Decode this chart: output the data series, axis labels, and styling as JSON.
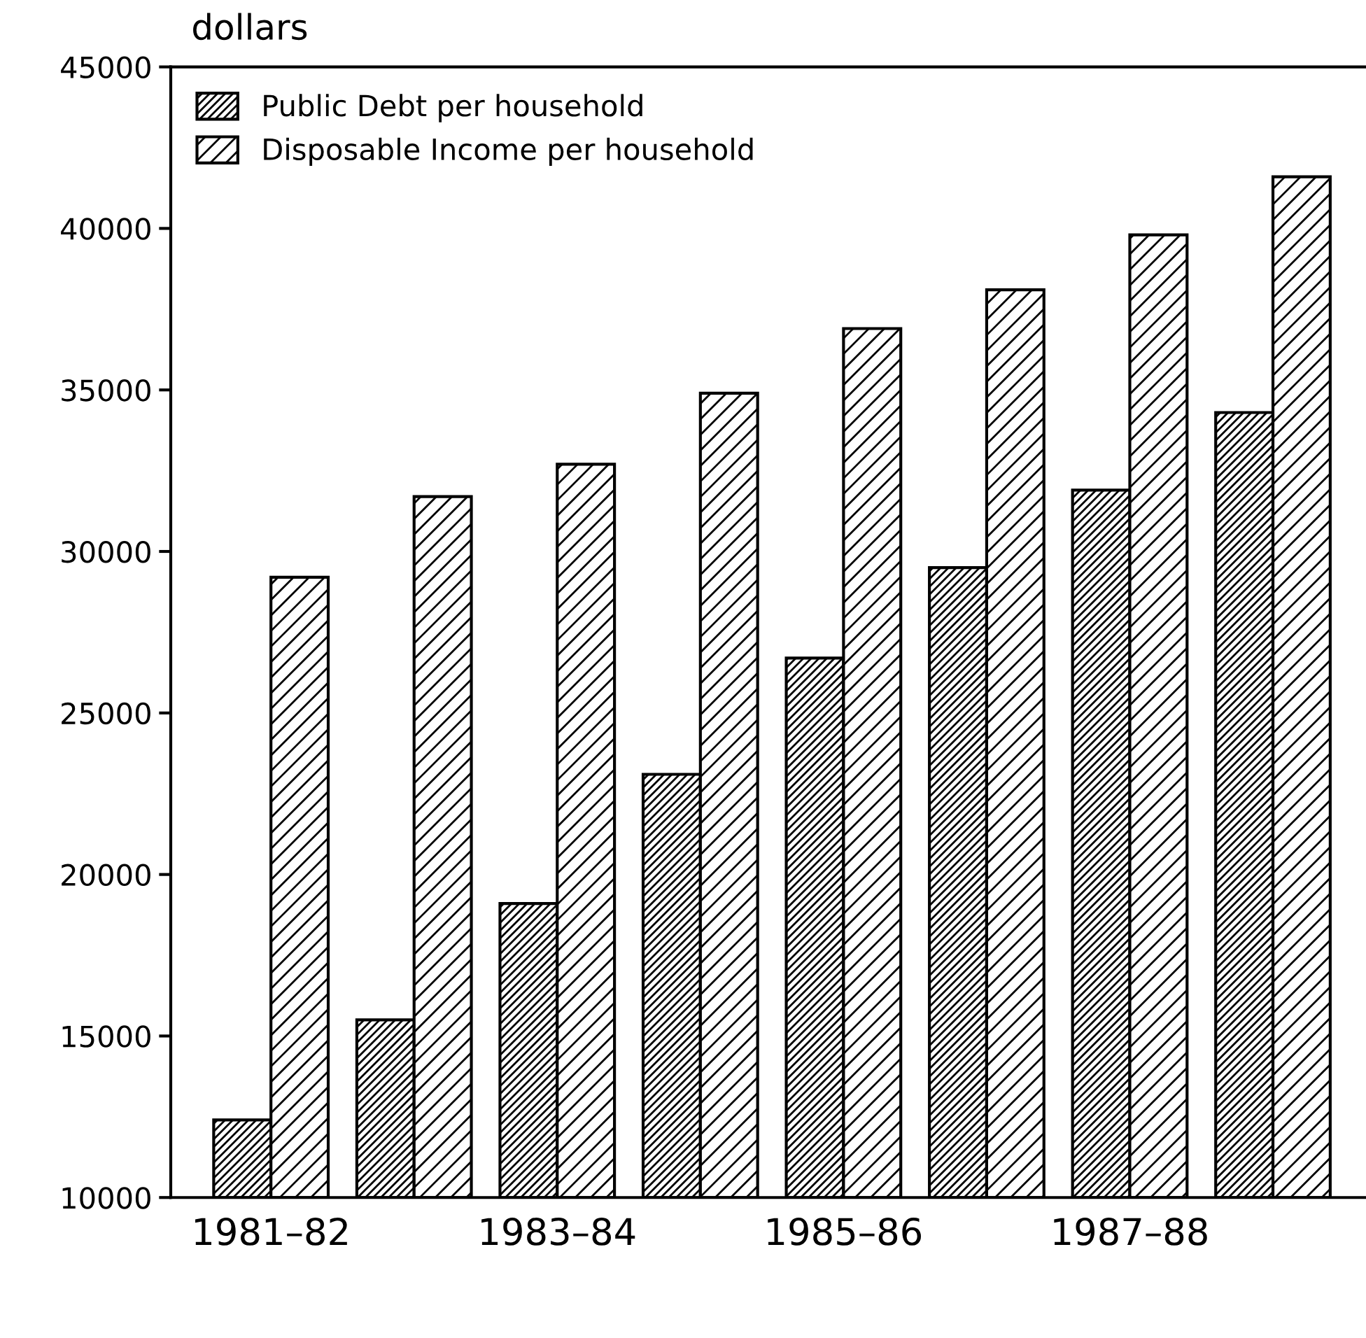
{
  "chart_data": {
    "type": "bar",
    "ylabel": "dollars",
    "categories": [
      "1981–82",
      null,
      "1983–84",
      null,
      "1985–86",
      null,
      "1987–88",
      null
    ],
    "series": [
      {
        "name": "Public Debt per household",
        "color": "#000000",
        "values": [
          12400,
          15500,
          19100,
          23100,
          26700,
          29500,
          31900,
          34300
        ]
      },
      {
        "name": "Disposable Income per household",
        "color": "#000000",
        "values": [
          29200,
          31700,
          32700,
          34900,
          36900,
          38100,
          39800,
          41600
        ]
      }
    ],
    "ylim": [
      10000,
      45000
    ],
    "yticks": [
      10000,
      15000,
      20000,
      25000,
      30000,
      35000,
      40000,
      45000
    ],
    "grid": false,
    "legend": "top left"
  }
}
